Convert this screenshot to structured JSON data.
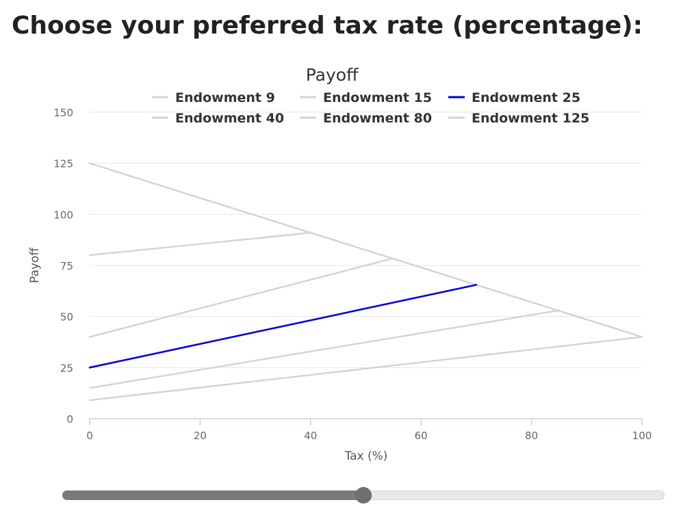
{
  "page": {
    "title": "Choose your preferred tax rate (percentage):"
  },
  "slider": {
    "min": 0,
    "max": 100,
    "value": 50,
    "fill_color": "#7a7a7a",
    "track_color": "#e9e9e9"
  },
  "chart_data": {
    "type": "line",
    "title": "Payoff",
    "xlabel": "Tax (%)",
    "ylabel": "Payoff",
    "xlim": [
      0,
      100
    ],
    "ylim": [
      0,
      150
    ],
    "xticks": [
      "0",
      "20",
      "40",
      "60",
      "80",
      "100"
    ],
    "yticks": [
      "0",
      "25",
      "50",
      "75",
      "100",
      "125",
      "150"
    ],
    "grid": true,
    "legend_position": "top",
    "series": [
      {
        "name": "Endowment 9",
        "color": "#d3d3d3",
        "highlighted": false,
        "points": [
          {
            "x": 0,
            "y": 9
          },
          {
            "x": 100,
            "y": 40
          }
        ]
      },
      {
        "name": "Endowment 15",
        "color": "#d3d3d3",
        "highlighted": false,
        "points": [
          {
            "x": 0,
            "y": 15
          },
          {
            "x": 85,
            "y": 53
          }
        ]
      },
      {
        "name": "Endowment 25",
        "color": "#0000dd",
        "highlighted": true,
        "points": [
          {
            "x": 0,
            "y": 25
          },
          {
            "x": 70,
            "y": 65.5
          }
        ]
      },
      {
        "name": "Endowment 40",
        "color": "#d3d3d3",
        "highlighted": false,
        "points": [
          {
            "x": 0,
            "y": 40
          },
          {
            "x": 55,
            "y": 78.5
          }
        ]
      },
      {
        "name": "Endowment 80",
        "color": "#d3d3d3",
        "highlighted": false,
        "points": [
          {
            "x": 0,
            "y": 80
          },
          {
            "x": 40,
            "y": 91
          }
        ]
      },
      {
        "name": "Endowment 125",
        "color": "#d3d3d3",
        "highlighted": false,
        "points": [
          {
            "x": 0,
            "y": 125
          },
          {
            "x": 100,
            "y": 40
          }
        ]
      }
    ]
  }
}
